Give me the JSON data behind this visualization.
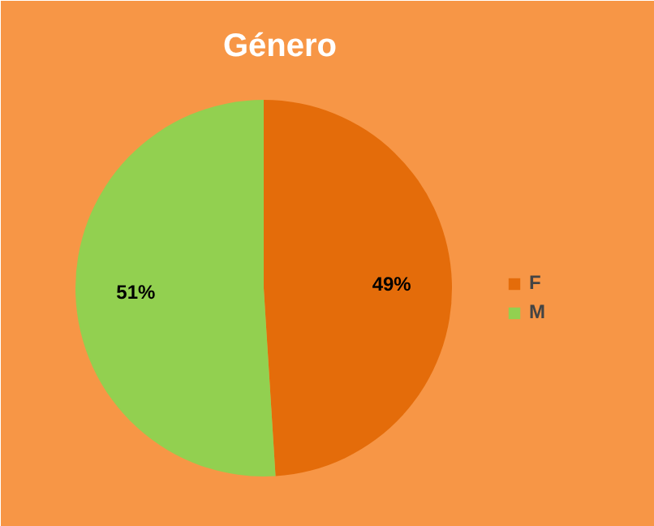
{
  "chart_data": {
    "type": "pie",
    "title": "Género",
    "categories": [
      "F",
      "M"
    ],
    "values": [
      49,
      51
    ],
    "colors": [
      "#e46c0a",
      "#92d050"
    ],
    "value_labels": [
      "49%",
      "51%"
    ],
    "legend": "right"
  }
}
